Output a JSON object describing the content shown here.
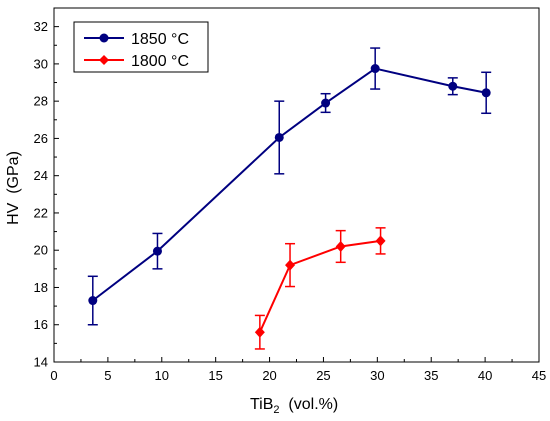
{
  "chart_data": {
    "type": "line",
    "xlabel": {
      "main": "TiB",
      "sub": "2",
      "rest": "  (vol.%)"
    },
    "ylabel": "HV  (GPa)",
    "xlim": [
      0,
      45
    ],
    "ylim": [
      14,
      33
    ],
    "x_ticks": [
      0,
      5,
      10,
      15,
      20,
      25,
      30,
      35,
      40,
      45
    ],
    "y_ticks": [
      14,
      16,
      18,
      20,
      22,
      24,
      26,
      28,
      30,
      32
    ],
    "legend_position": "top-left",
    "series": [
      {
        "name": "1850 °C",
        "color": "#000080",
        "marker": "circle",
        "points": [
          {
            "x": 3.6,
            "y": 17.3,
            "err": 1.3
          },
          {
            "x": 9.6,
            "y": 19.95,
            "err": 0.95
          },
          {
            "x": 20.9,
            "y": 26.05,
            "err": 1.95
          },
          {
            "x": 25.2,
            "y": 27.9,
            "err": 0.5
          },
          {
            "x": 29.8,
            "y": 29.75,
            "err": 1.1
          },
          {
            "x": 37.0,
            "y": 28.8,
            "err": 0.45
          },
          {
            "x": 40.1,
            "y": 28.45,
            "err": 1.1
          }
        ]
      },
      {
        "name": "1800 °C",
        "color": "#ff0000",
        "marker": "diamond",
        "points": [
          {
            "x": 19.1,
            "y": 15.6,
            "err": 0.9
          },
          {
            "x": 21.9,
            "y": 19.2,
            "err": 1.15
          },
          {
            "x": 26.6,
            "y": 20.2,
            "err": 0.85
          },
          {
            "x": 30.3,
            "y": 20.5,
            "err": 0.7
          }
        ]
      }
    ]
  }
}
